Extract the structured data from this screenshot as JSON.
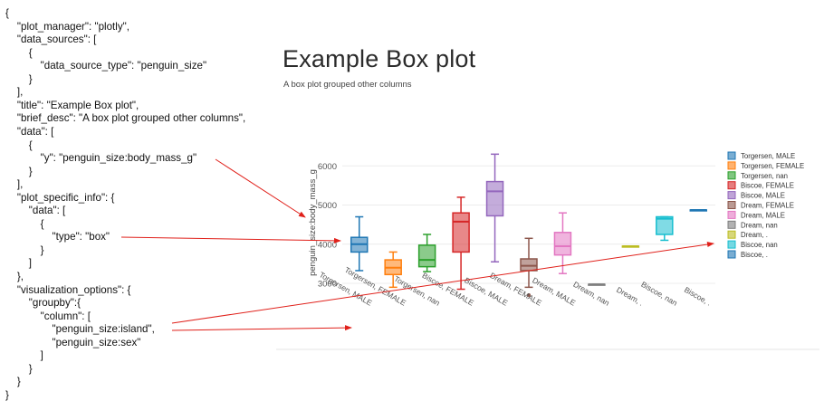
{
  "json_lines": [
    "{",
    "    \"plot_manager\": \"plotly\",",
    "    \"data_sources\": [",
    "        {",
    "            \"data_source_type\": \"penguin_size\"",
    "        }",
    "    ],",
    "    \"title\": \"Example Box plot\",",
    "    \"brief_desc\": \"A box plot grouped other columns\",",
    "    \"data\": [",
    "        {",
    "            \"y\": \"penguin_size:body_mass_g\"",
    "        }",
    "    ],",
    "    \"plot_specific_info\": {",
    "        \"data\": [",
    "            {",
    "                \"type\": \"box\"",
    "            }",
    "        ]",
    "    },",
    "    \"visualization_options\": {",
    "        \"groupby\":{",
    "            \"column\": [",
    "                \"penguin_size:island\",",
    "                \"penguin_size:sex\"",
    "            ]",
    "        }",
    "    }",
    "}"
  ],
  "chart": {
    "title": "Example Box plot",
    "brief_desc": "A box plot grouped other columns"
  },
  "chart_data": {
    "type": "box",
    "title": "Example Box plot",
    "subtitle": "A box plot grouped other columns",
    "ylabel": "penguin_size:body_mass_g",
    "ylim": [
      2700,
      6400
    ],
    "yticks": [
      3000,
      4000,
      5000,
      6000
    ],
    "grid": true,
    "legend_position": "right",
    "series": [
      {
        "name": "Torgersen, MALE",
        "color": "#1f77b4",
        "min": 3325,
        "q1": 3800,
        "median": 4000,
        "q3": 4175,
        "max": 4700,
        "outliers": []
      },
      {
        "name": "Torgersen, FEMALE",
        "color": "#ff7f0e",
        "min": 2900,
        "q1": 3225,
        "median": 3400,
        "q3": 3600,
        "max": 3800,
        "outliers": []
      },
      {
        "name": "Torgersen, nan",
        "color": "#2ca02c",
        "min": 3300,
        "q1": 3425,
        "median": 3600,
        "q3": 3975,
        "max": 4250,
        "outliers": []
      },
      {
        "name": "Biscoe, FEMALE",
        "color": "#d62728",
        "min": 2850,
        "q1": 3800,
        "median": 4575,
        "q3": 4800,
        "max": 5200,
        "outliers": []
      },
      {
        "name": "Biscoe, MALE",
        "color": "#9467bd",
        "min": 3550,
        "q1": 4725,
        "median": 5350,
        "q3": 5600,
        "max": 6300,
        "outliers": []
      },
      {
        "name": "Dream, FEMALE",
        "color": "#8c564b",
        "min": 2900,
        "q1": 3325,
        "median": 3450,
        "q3": 3625,
        "max": 4150,
        "outliers": [
          2700
        ]
      },
      {
        "name": "Dream, MALE",
        "color": "#e377c2",
        "min": 3250,
        "q1": 3725,
        "median": 3950,
        "q3": 4300,
        "max": 4800,
        "outliers": []
      },
      {
        "name": "Dream, nan",
        "color": "#7f7f7f",
        "min": 2975,
        "q1": 2975,
        "median": 2975,
        "q3": 2975,
        "max": 2975,
        "outliers": []
      },
      {
        "name": "Dream, .",
        "color": "#bcbd22",
        "min": 3950,
        "q1": 3950,
        "median": 3950,
        "q3": 3950,
        "max": 3950,
        "outliers": []
      },
      {
        "name": "Biscoe, nan",
        "color": "#17becf",
        "min": 4100,
        "q1": 4250,
        "median": 4650,
        "q3": 4700,
        "max": 4700,
        "outliers": []
      },
      {
        "name": "Biscoe, .",
        "color": "#1f77b4",
        "min": 4875,
        "q1": 4875,
        "median": 4875,
        "q3": 4875,
        "max": 4875,
        "outliers": []
      }
    ]
  }
}
